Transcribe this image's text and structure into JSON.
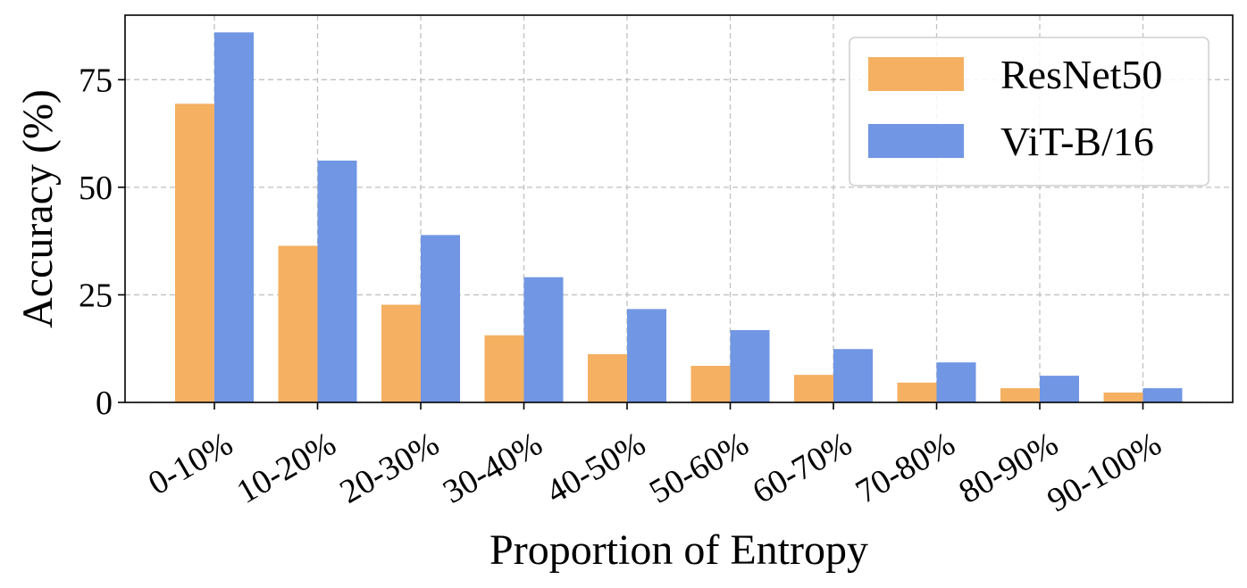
{
  "chart_data": {
    "type": "bar",
    "categories": [
      "0-10%",
      "10-20%",
      "20-30%",
      "30-40%",
      "40-50%",
      "50-60%",
      "60-70%",
      "70-80%",
      "80-90%",
      "90-100%"
    ],
    "series": [
      {
        "name": "ResNet50",
        "color": "#F5B062",
        "values": [
          69.4,
          36.4,
          22.7,
          15.6,
          11.2,
          8.5,
          6.4,
          4.6,
          3.3,
          2.3
        ]
      },
      {
        "name": "ViT-B/16",
        "color": "#7096E4",
        "values": [
          86.0,
          56.2,
          38.9,
          29.1,
          21.7,
          16.8,
          12.4,
          9.3,
          6.2,
          3.3
        ]
      }
    ],
    "xlabel": "Proportion of Entropy",
    "ylabel": "Accuracy (%)",
    "ylim": [
      0,
      90
    ],
    "yticks": [
      0,
      25,
      50,
      75
    ],
    "grid": true,
    "legend_position": "top-right"
  }
}
